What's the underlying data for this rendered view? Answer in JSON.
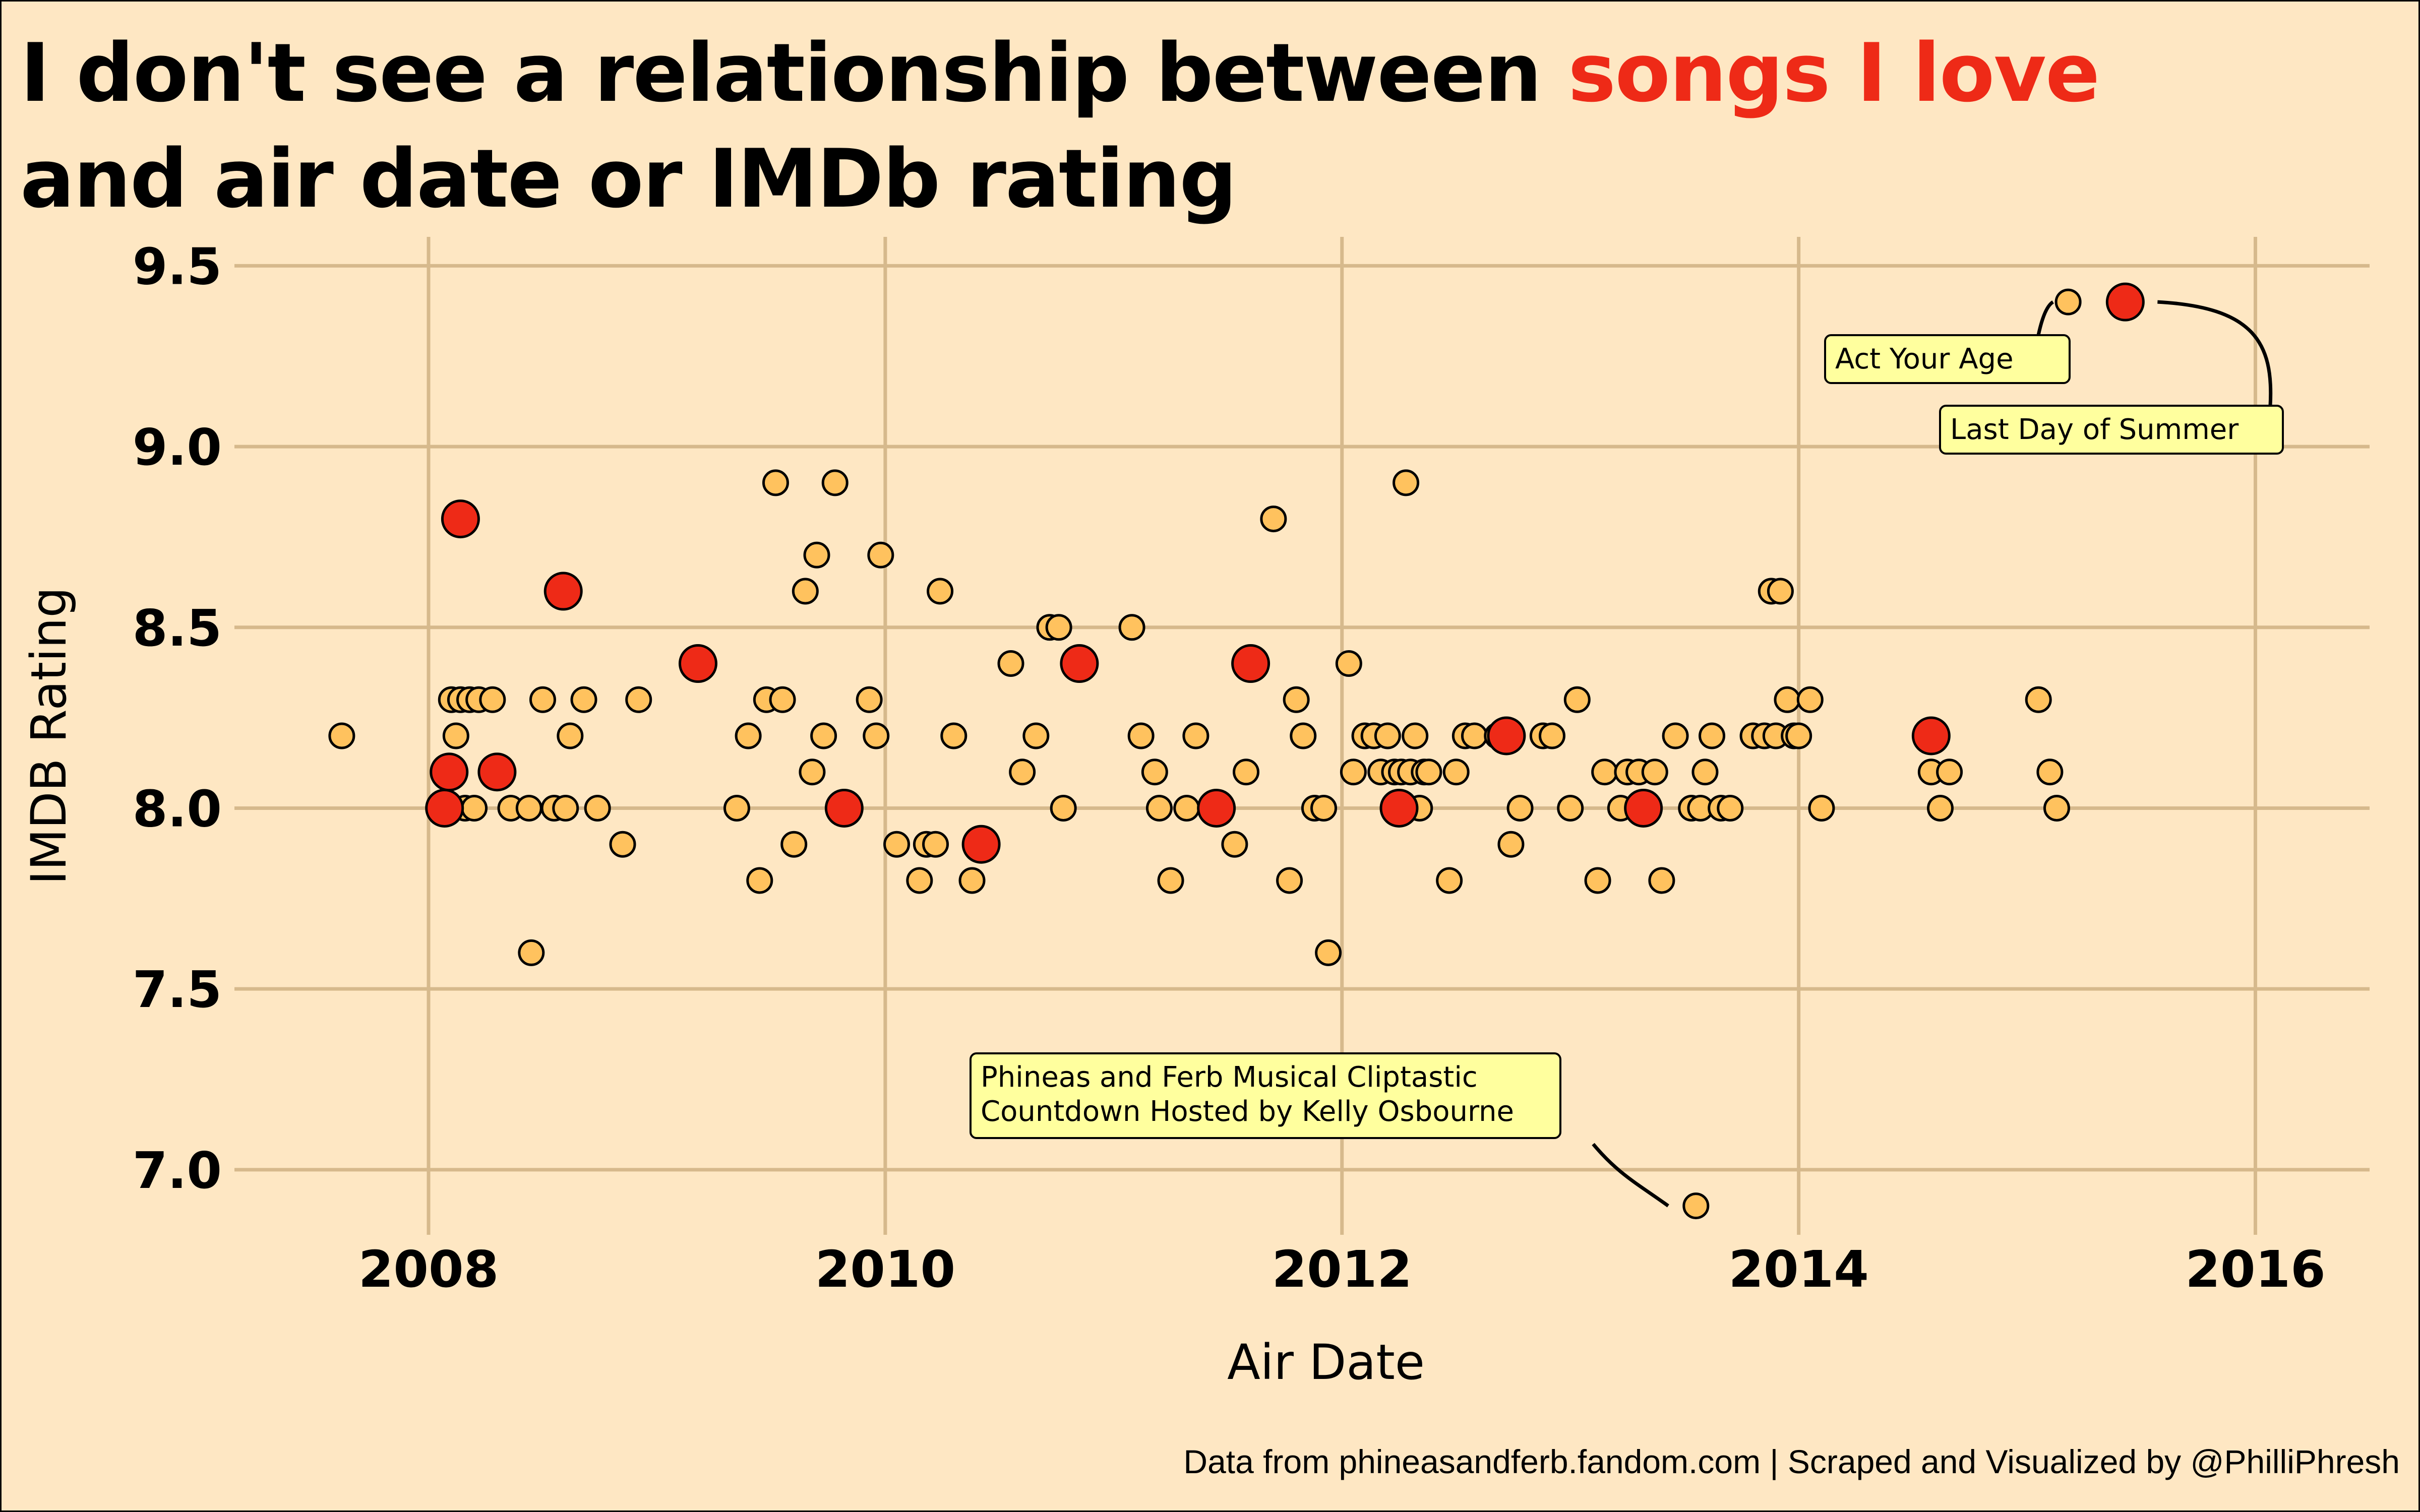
{
  "chart_data": {
    "type": "scatter",
    "title_line1": "I don't see a relationship between ",
    "title_highlight": "songs I love",
    "title_line2": "and air date or IMDb rating",
    "xlabel": "Air Date",
    "ylabel": "IMDB Rating",
    "xlim": [
      2007.15,
      2016.5
    ],
    "ylim": [
      6.82,
      9.58
    ],
    "x_ticks": [
      2008,
      2010,
      2012,
      2014,
      2016
    ],
    "y_ticks": [
      7.0,
      7.5,
      8.0,
      8.5,
      9.0,
      9.5
    ],
    "y_tick_labels": [
      "7.0",
      "7.5",
      "8.0",
      "8.5",
      "9.0",
      "9.5"
    ],
    "grid": true,
    "colors": {
      "songs": "#ffc25e",
      "loved": "#ee2a17",
      "grid": "#d6b98c",
      "label_bg": "#ffff9e",
      "background": "#fee7c3"
    },
    "series": [
      {
        "points": [
          [
            2007.62,
            8.2
          ],
          [
            2008.1,
            8.3
          ],
          [
            2008.12,
            8.2
          ],
          [
            2008.14,
            8.3
          ],
          [
            2008.16,
            8.0
          ],
          [
            2008.18,
            8.3
          ],
          [
            2008.2,
            8.0
          ],
          [
            2008.22,
            8.3
          ],
          [
            2008.28,
            8.3
          ],
          [
            2008.36,
            8.0
          ],
          [
            2008.44,
            8.0
          ],
          [
            2008.5,
            8.3
          ],
          [
            2008.55,
            8.0
          ],
          [
            2008.6,
            8.0
          ],
          [
            2008.45,
            7.6
          ],
          [
            2008.74,
            8.0
          ],
          [
            2008.62,
            8.2
          ],
          [
            2008.68,
            8.3
          ],
          [
            2008.85,
            7.9
          ],
          [
            2008.92,
            8.3
          ],
          [
            2009.35,
            8.0
          ],
          [
            2009.4,
            8.2
          ],
          [
            2009.45,
            7.8
          ],
          [
            2009.48,
            8.3
          ],
          [
            2009.52,
            8.9
          ],
          [
            2009.55,
            8.3
          ],
          [
            2009.6,
            7.9
          ],
          [
            2009.65,
            8.6
          ],
          [
            2009.68,
            8.1
          ],
          [
            2009.7,
            8.7
          ],
          [
            2009.73,
            8.2
          ],
          [
            2009.78,
            8.9
          ],
          [
            2009.93,
            8.3
          ],
          [
            2009.96,
            8.2
          ],
          [
            2009.98,
            8.7
          ],
          [
            2010.05,
            7.9
          ],
          [
            2010.15,
            7.8
          ],
          [
            2010.18,
            7.9
          ],
          [
            2010.22,
            7.9
          ],
          [
            2010.24,
            8.6
          ],
          [
            2010.3,
            8.2
          ],
          [
            2010.38,
            7.8
          ],
          [
            2010.55,
            8.4
          ],
          [
            2010.6,
            8.1
          ],
          [
            2010.66,
            8.2
          ],
          [
            2010.72,
            8.5
          ],
          [
            2010.76,
            8.5
          ],
          [
            2010.78,
            8.0
          ],
          [
            2011.08,
            8.5
          ],
          [
            2011.12,
            8.2
          ],
          [
            2011.18,
            8.1
          ],
          [
            2011.2,
            8.0
          ],
          [
            2011.25,
            7.8
          ],
          [
            2011.32,
            8.0
          ],
          [
            2011.36,
            8.2
          ],
          [
            2011.53,
            7.9
          ],
          [
            2011.58,
            8.1
          ],
          [
            2011.7,
            8.8
          ],
          [
            2011.77,
            7.8
          ],
          [
            2011.8,
            8.3
          ],
          [
            2011.83,
            8.2
          ],
          [
            2011.88,
            8.0
          ],
          [
            2011.92,
            8.0
          ],
          [
            2011.94,
            7.6
          ],
          [
            2012.03,
            8.4
          ],
          [
            2012.05,
            8.1
          ],
          [
            2012.1,
            8.2
          ],
          [
            2012.14,
            8.2
          ],
          [
            2012.17,
            8.1
          ],
          [
            2012.2,
            8.2
          ],
          [
            2012.23,
            8.1
          ],
          [
            2012.26,
            8.1
          ],
          [
            2012.28,
            8.9
          ],
          [
            2012.3,
            8.1
          ],
          [
            2012.32,
            8.2
          ],
          [
            2012.34,
            8.0
          ],
          [
            2012.36,
            8.1
          ],
          [
            2012.38,
            8.1
          ],
          [
            2012.47,
            7.8
          ],
          [
            2012.5,
            8.1
          ],
          [
            2012.54,
            8.2
          ],
          [
            2012.58,
            8.2
          ],
          [
            2012.68,
            8.2
          ],
          [
            2012.74,
            7.9
          ],
          [
            2012.78,
            8.0
          ],
          [
            2012.88,
            8.2
          ],
          [
            2012.92,
            8.2
          ],
          [
            2013.0,
            8.0
          ],
          [
            2013.03,
            8.3
          ],
          [
            2013.12,
            7.8
          ],
          [
            2013.15,
            8.1
          ],
          [
            2013.22,
            8.0
          ],
          [
            2013.25,
            8.1
          ],
          [
            2013.3,
            8.1
          ],
          [
            2013.37,
            8.1
          ],
          [
            2013.4,
            7.8
          ],
          [
            2013.46,
            8.2
          ],
          [
            2013.53,
            8.0
          ],
          [
            2013.57,
            8.0
          ],
          [
            2013.59,
            8.1
          ],
          [
            2013.62,
            8.2
          ],
          [
            2013.66,
            8.0
          ],
          [
            2013.7,
            8.0
          ],
          [
            2013.8,
            8.2
          ],
          [
            2013.85,
            8.2
          ],
          [
            2013.88,
            8.6
          ],
          [
            2013.9,
            8.2
          ],
          [
            2013.92,
            8.6
          ],
          [
            2013.95,
            8.3
          ],
          [
            2013.98,
            8.2
          ],
          [
            2014.0,
            8.2
          ],
          [
            2014.05,
            8.3
          ],
          [
            2014.1,
            8.0
          ],
          [
            2014.58,
            8.1
          ],
          [
            2014.6,
            8.2
          ],
          [
            2014.62,
            8.0
          ],
          [
            2014.66,
            8.1
          ],
          [
            2015.05,
            8.3
          ],
          [
            2015.1,
            8.1
          ],
          [
            2015.13,
            8.0
          ],
          [
            2015.18,
            9.4
          ],
          [
            2013.55,
            6.9
          ]
        ]
      },
      {
        "points": [
          [
            2008.07,
            8.0
          ],
          [
            2008.09,
            8.1
          ],
          [
            2008.3,
            8.1
          ],
          [
            2008.14,
            8.8
          ],
          [
            2008.59,
            8.6
          ],
          [
            2009.18,
            8.4
          ],
          [
            2009.82,
            8.0
          ],
          [
            2010.42,
            7.9
          ],
          [
            2010.85,
            8.4
          ],
          [
            2011.45,
            8.0
          ],
          [
            2011.6,
            8.4
          ],
          [
            2012.25,
            8.0
          ],
          [
            2012.72,
            8.2
          ],
          [
            2013.32,
            8.0
          ],
          [
            2014.58,
            8.2
          ],
          [
            2015.43,
            9.4
          ]
        ]
      }
    ],
    "annotations": [
      {
        "lines": [
          "Act Your Age"
        ],
        "point": [
          2015.18,
          9.4
        ]
      },
      {
        "lines": [
          "Last Day of Summer"
        ],
        "point": [
          2015.43,
          9.4
        ]
      },
      {
        "lines": [
          "Phineas and Ferb Musical Cliptastic",
          "Countdown Hosted by Kelly Osbourne"
        ],
        "point": [
          2013.55,
          6.9
        ]
      }
    ],
    "caption": "Data from phineasandferb.fandom.com  |  Scraped and Visualized by @PhilliPhresh"
  }
}
